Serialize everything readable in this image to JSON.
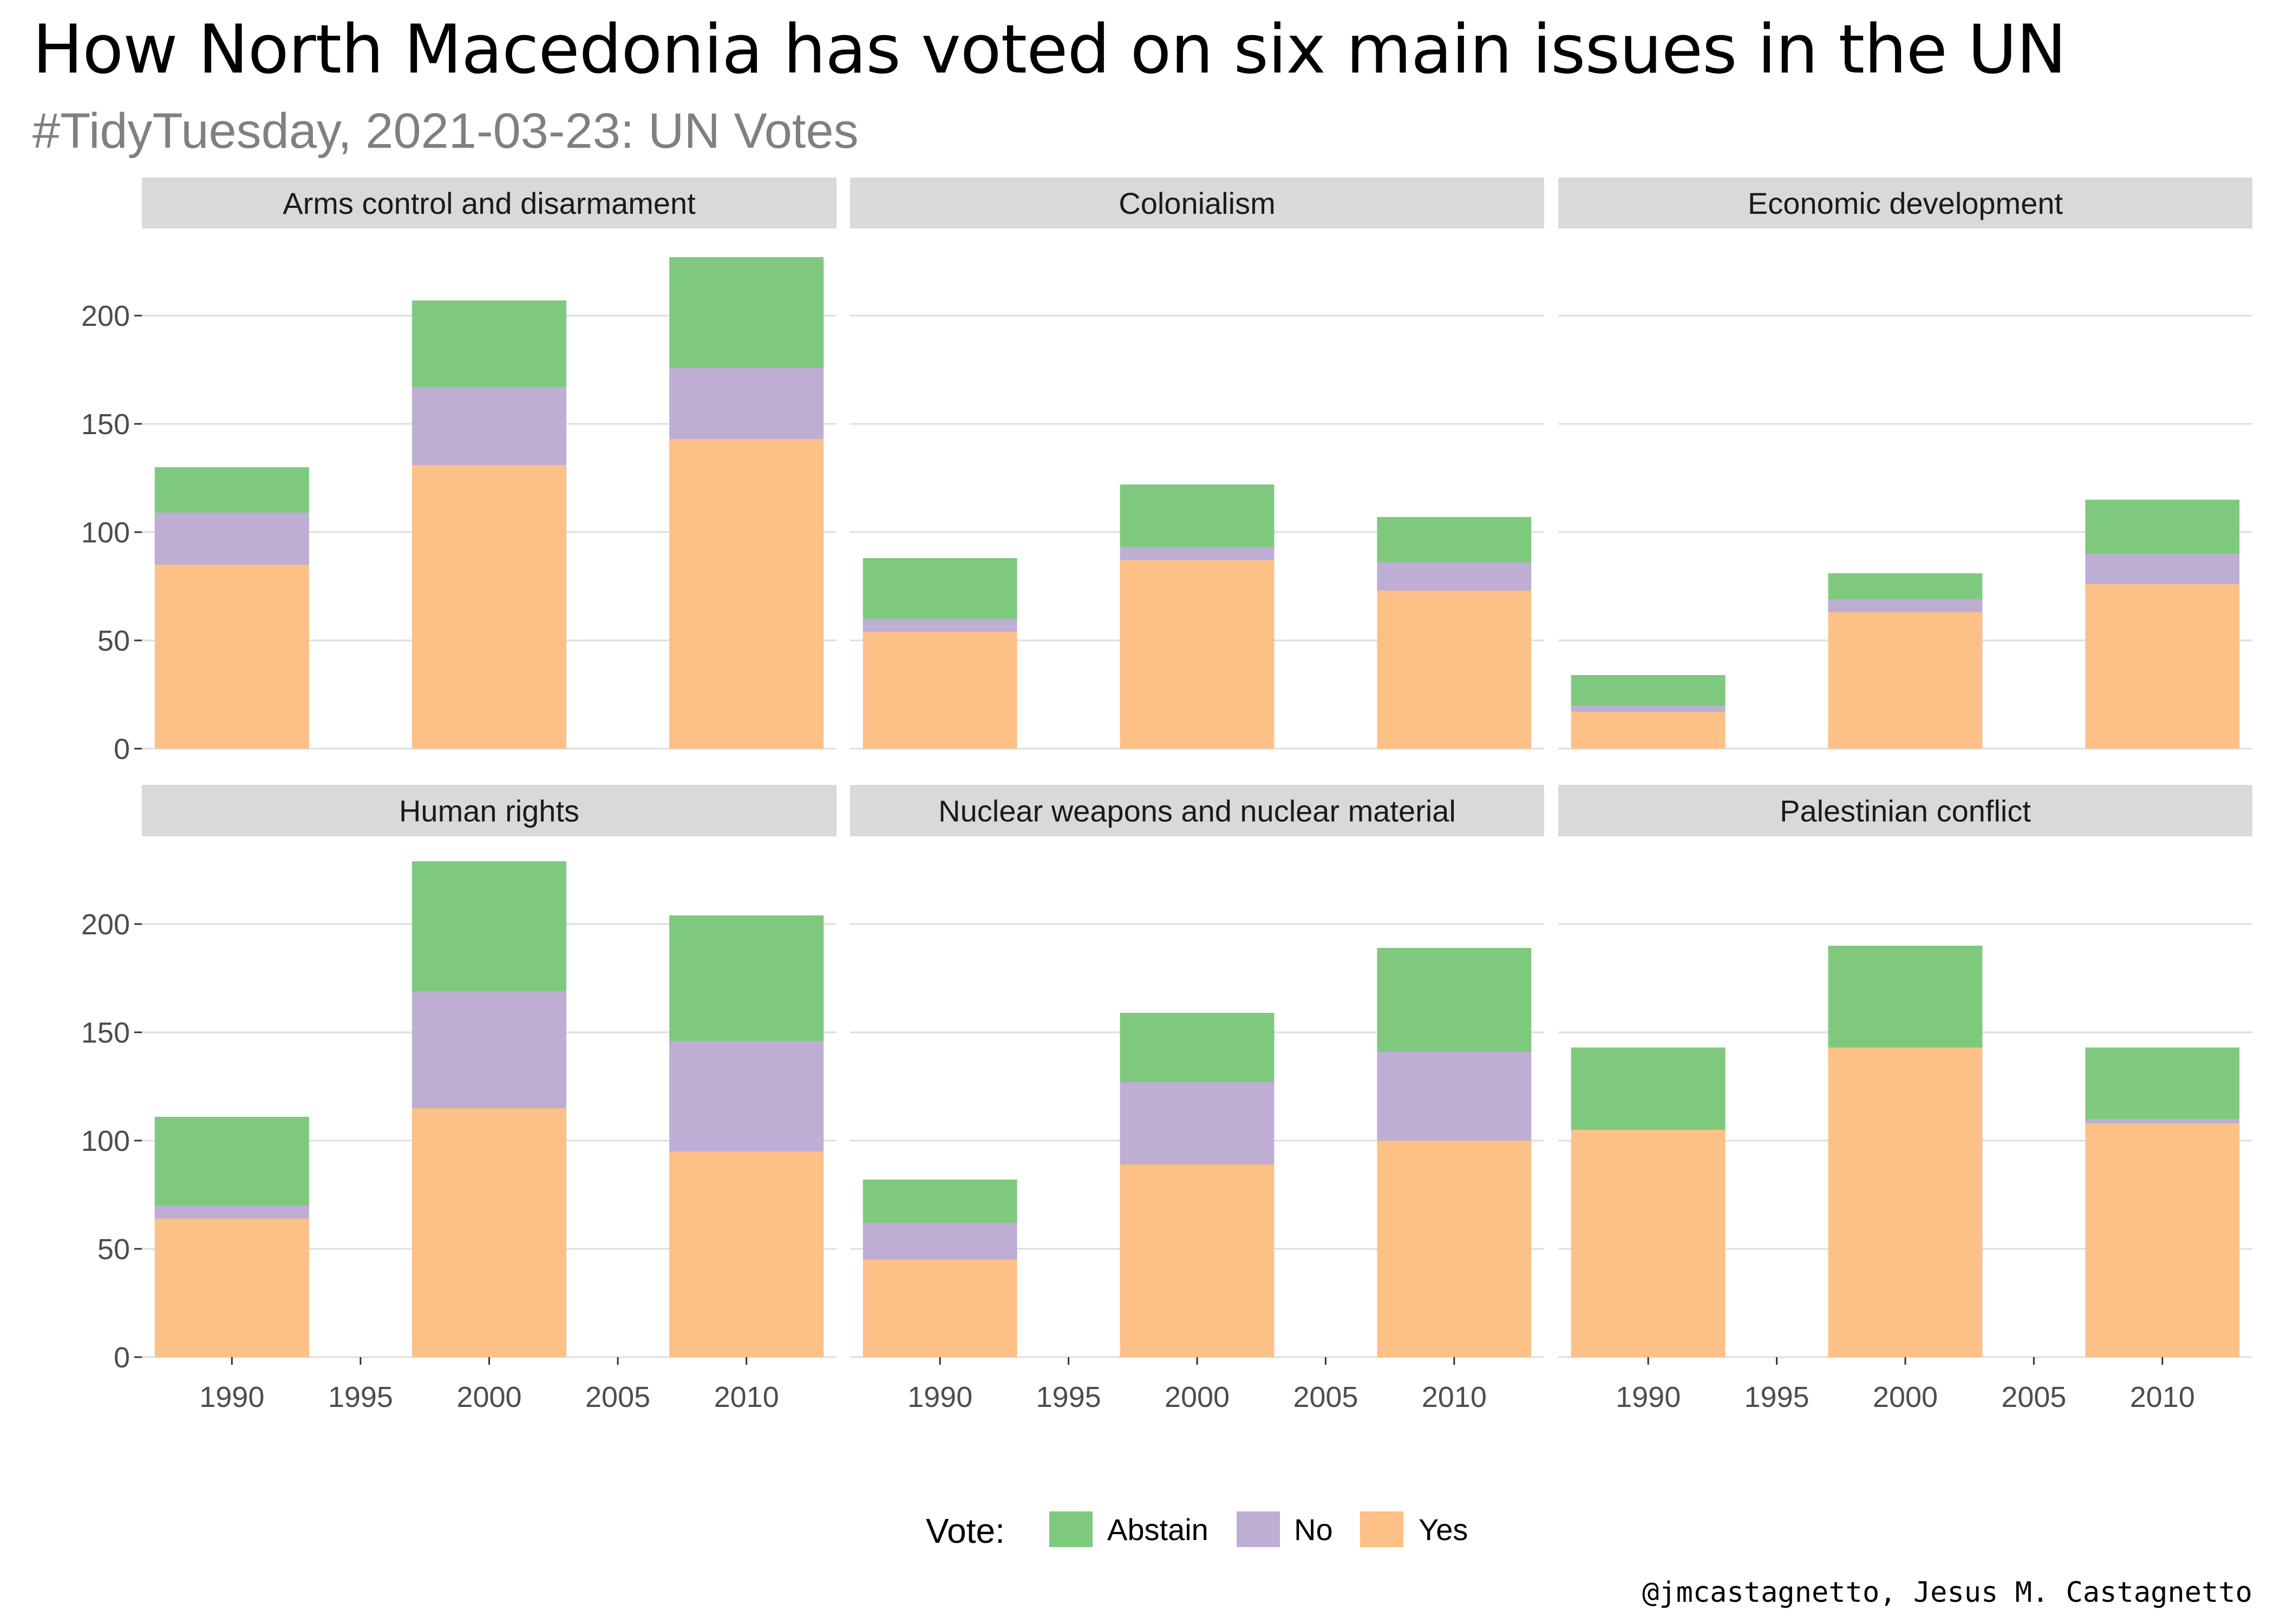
{
  "title": "How North Macedonia has voted on six main issues in the UN",
  "subtitle": "#TidyTuesday, 2021-03-23: UN Votes",
  "caption": "@jmcastagnetto, Jesus M. Castagnetto",
  "legend": {
    "title": "Vote:",
    "items": [
      {
        "label": "Abstain",
        "color": "#7fc97f"
      },
      {
        "label": "No",
        "color": "#beaed4"
      },
      {
        "label": "Yes",
        "color": "#fdc086"
      }
    ]
  },
  "chart_data": {
    "type": "bar",
    "stacked": true,
    "faceted": true,
    "x_ticks": [
      1990,
      1995,
      2000,
      2005,
      2010
    ],
    "y_ticks": [
      0,
      50,
      100,
      150,
      200
    ],
    "xlim": [
      1986.5,
      2013.5
    ],
    "ylim": [
      0,
      240
    ],
    "bar_width_years": 6,
    "grid": true,
    "legend_position": "bottom",
    "series_order_bottom_to_top": [
      "Yes",
      "No",
      "Abstain"
    ],
    "panels": [
      {
        "name": "Arms control and disarmament",
        "bars": [
          {
            "x": 1990,
            "Yes": 85,
            "No": 24,
            "Abstain": 21
          },
          {
            "x": 2000,
            "Yes": 131,
            "No": 36,
            "Abstain": 40
          },
          {
            "x": 2010,
            "Yes": 143,
            "No": 33,
            "Abstain": 51
          }
        ]
      },
      {
        "name": "Colonialism",
        "bars": [
          {
            "x": 1990,
            "Yes": 54,
            "No": 6,
            "Abstain": 28
          },
          {
            "x": 2000,
            "Yes": 87,
            "No": 6,
            "Abstain": 29
          },
          {
            "x": 2010,
            "Yes": 73,
            "No": 13,
            "Abstain": 21
          }
        ]
      },
      {
        "name": "Economic development",
        "bars": [
          {
            "x": 1990,
            "Yes": 17,
            "No": 3,
            "Abstain": 14
          },
          {
            "x": 2000,
            "Yes": 63,
            "No": 6,
            "Abstain": 12
          },
          {
            "x": 2010,
            "Yes": 76,
            "No": 14,
            "Abstain": 25
          }
        ]
      },
      {
        "name": "Human rights",
        "bars": [
          {
            "x": 1990,
            "Yes": 64,
            "No": 6,
            "Abstain": 41
          },
          {
            "x": 2000,
            "Yes": 115,
            "No": 54,
            "Abstain": 60
          },
          {
            "x": 2010,
            "Yes": 95,
            "No": 51,
            "Abstain": 58
          }
        ]
      },
      {
        "name": "Nuclear weapons and nuclear material",
        "bars": [
          {
            "x": 1990,
            "Yes": 45,
            "No": 17,
            "Abstain": 20
          },
          {
            "x": 2000,
            "Yes": 89,
            "No": 38,
            "Abstain": 32
          },
          {
            "x": 2010,
            "Yes": 100,
            "No": 41,
            "Abstain": 48
          }
        ]
      },
      {
        "name": "Palestinian conflict",
        "bars": [
          {
            "x": 1990,
            "Yes": 105,
            "No": 0,
            "Abstain": 38
          },
          {
            "x": 2000,
            "Yes": 143,
            "No": 0,
            "Abstain": 47
          },
          {
            "x": 2010,
            "Yes": 108,
            "No": 2,
            "Abstain": 33
          }
        ]
      }
    ]
  }
}
